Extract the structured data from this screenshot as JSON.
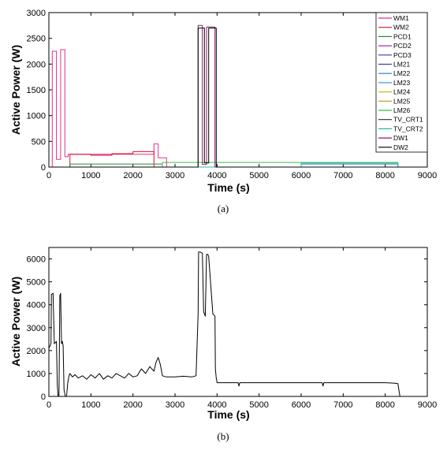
{
  "chart_data": [
    {
      "type": "line",
      "caption": "(a)",
      "xlabel": "Time (s)",
      "ylabel": "Active Power (W)",
      "xlim": [
        0,
        9000
      ],
      "ylim": [
        0,
        3000
      ],
      "xticks": [
        0,
        1000,
        2000,
        3000,
        4000,
        5000,
        6000,
        7000,
        8000,
        9000
      ],
      "yticks": [
        0,
        500,
        1000,
        1500,
        2000,
        2500,
        3000
      ],
      "legend_position": "top-right",
      "series": [
        {
          "name": "WM1",
          "color": "#e0308a",
          "x": [
            0,
            80,
            80,
            180,
            180,
            280,
            280,
            380,
            380,
            460,
            460,
            2500,
            2500,
            2600,
            2600,
            2800,
            2800,
            9000
          ],
          "y": [
            0,
            0,
            2250,
            2250,
            150,
            150,
            2280,
            2280,
            200,
            200,
            250,
            250,
            450,
            450,
            180,
            180,
            0,
            0
          ]
        },
        {
          "name": "WM2",
          "color": "#e0102a",
          "x": [
            0,
            500,
            500,
            1000,
            1000,
            1500,
            1500,
            2000,
            2000,
            2500,
            2500,
            9000
          ],
          "y": [
            0,
            0,
            250,
            250,
            230,
            230,
            260,
            260,
            300,
            300,
            0,
            0
          ]
        },
        {
          "name": "PCD1",
          "color": "#2a8a3a",
          "x": [
            0,
            500,
            500,
            2700,
            2700,
            9000
          ],
          "y": [
            0,
            0,
            60,
            60,
            0,
            0
          ]
        },
        {
          "name": "PCD2",
          "color": "#9a30c0",
          "x": [
            0,
            9000
          ],
          "y": [
            0,
            0
          ]
        },
        {
          "name": "PCD3",
          "color": "#5030b0",
          "x": [
            0,
            9000
          ],
          "y": [
            0,
            0
          ]
        },
        {
          "name": "LM21",
          "color": "#3040c0",
          "x": [
            0,
            9000
          ],
          "y": [
            0,
            0
          ]
        },
        {
          "name": "LM22",
          "color": "#2080c0",
          "x": [
            0,
            6000,
            6000,
            8300,
            8300,
            9000
          ],
          "y": [
            0,
            0,
            60,
            60,
            0,
            0
          ]
        },
        {
          "name": "LM23",
          "color": "#40a0d0",
          "x": [
            0,
            9000
          ],
          "y": [
            0,
            0
          ]
        },
        {
          "name": "LM24",
          "color": "#c0c020",
          "x": [
            0,
            9000
          ],
          "y": [
            0,
            0
          ]
        },
        {
          "name": "LM25",
          "color": "#c09020",
          "x": [
            0,
            9000
          ],
          "y": [
            0,
            0
          ]
        },
        {
          "name": "LM26",
          "color": "#40c040",
          "x": [
            0,
            2700,
            2700,
            8300,
            8300,
            9000
          ],
          "y": [
            0,
            0,
            90,
            90,
            0,
            0
          ]
        },
        {
          "name": "TV_CRT1",
          "color": "#303030",
          "x": [
            0,
            9000
          ],
          "y": [
            0,
            0
          ]
        },
        {
          "name": "TV_CRT2",
          "color": "#20c0a0",
          "x": [
            0,
            6000,
            6000,
            8300,
            8300,
            9000
          ],
          "y": [
            0,
            0,
            80,
            80,
            0,
            0
          ]
        },
        {
          "name": "DW1",
          "color": "#8a1a6a",
          "x": [
            0,
            3550,
            3550,
            3650,
            3650,
            3750,
            3750,
            3950,
            3950,
            9000
          ],
          "y": [
            0,
            0,
            2750,
            2750,
            50,
            50,
            2720,
            2720,
            0,
            0
          ]
        },
        {
          "name": "DW2",
          "color": "#000000",
          "x": [
            0,
            3550,
            3550,
            3700,
            3700,
            3800,
            3800,
            3980,
            3980,
            9000
          ],
          "y": [
            0,
            0,
            2700,
            2700,
            80,
            80,
            2700,
            2700,
            0,
            0
          ]
        }
      ]
    },
    {
      "type": "line",
      "caption": "(b)",
      "xlabel": "Time (s)",
      "ylabel": "Active Power (W)",
      "xlim": [
        0,
        9000
      ],
      "ylim": [
        0,
        6500
      ],
      "xticks": [
        0,
        1000,
        2000,
        3000,
        4000,
        5000,
        6000,
        7000,
        8000,
        9000
      ],
      "yticks": [
        0,
        1000,
        2000,
        3000,
        4000,
        5000,
        6000
      ],
      "series": [
        {
          "color": "#000000",
          "x": [
            0,
            50,
            60,
            100,
            130,
            180,
            200,
            220,
            240,
            260,
            280,
            300,
            320,
            340,
            360,
            390,
            420,
            450,
            480,
            500,
            560,
            620,
            700,
            800,
            900,
            1000,
            1100,
            1200,
            1300,
            1400,
            1500,
            1600,
            1700,
            1800,
            1900,
            2000,
            2100,
            2200,
            2300,
            2400,
            2500,
            2550,
            2600,
            2650,
            2700,
            2800,
            3000,
            3200,
            3400,
            3500,
            3550,
            3560,
            3600,
            3650,
            3680,
            3700,
            3720,
            3750,
            3780,
            3800,
            3900,
            3950,
            3960,
            3980,
            4000,
            4100,
            4500,
            4520,
            4540,
            5000,
            6000,
            6500,
            6520,
            6540,
            7000,
            8000,
            8200,
            8300,
            8350,
            9000
          ],
          "y": [
            2100,
            2300,
            4450,
            4500,
            2300,
            2400,
            500,
            0,
            0,
            4400,
            4500,
            2300,
            2400,
            2200,
            300,
            0,
            0,
            600,
            900,
            1000,
            850,
            950,
            800,
            900,
            750,
            950,
            800,
            1000,
            750,
            900,
            800,
            1000,
            900,
            800,
            1000,
            850,
            900,
            1200,
            1000,
            1300,
            1100,
            1500,
            1700,
            1400,
            900,
            850,
            850,
            880,
            850,
            900,
            3600,
            6300,
            6300,
            6250,
            3700,
            3600,
            3500,
            6200,
            6200,
            6100,
            3600,
            3500,
            1200,
            800,
            600,
            600,
            600,
            450,
            600,
            600,
            600,
            600,
            450,
            600,
            600,
            600,
            580,
            560,
            0,
            0
          ]
        }
      ]
    }
  ]
}
